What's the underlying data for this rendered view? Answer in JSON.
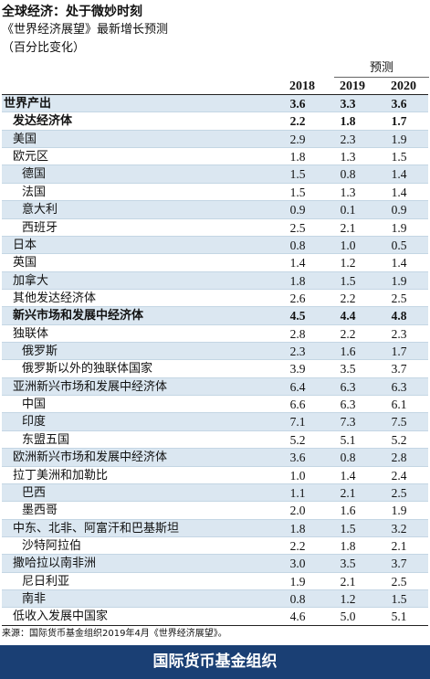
{
  "header": {
    "title": "全球经济：处于微妙时刻",
    "subtitle": "《世界经济展望》最新增长预测",
    "unit": "（百分比变化）"
  },
  "columns": {
    "forecast_label": "预测",
    "years": [
      "2018",
      "2019",
      "2020"
    ]
  },
  "rows": [
    {
      "name": "世界产出",
      "values": [
        "3.6",
        "3.3",
        "3.6"
      ],
      "level": 0,
      "bold": true,
      "shaded": true
    },
    {
      "name": "发达经济体",
      "values": [
        "2.2",
        "1.8",
        "1.7"
      ],
      "level": 1,
      "bold": true,
      "shaded": false
    },
    {
      "name": "美国",
      "values": [
        "2.9",
        "2.3",
        "1.9"
      ],
      "level": 1,
      "bold": false,
      "shaded": true
    },
    {
      "name": "欧元区",
      "values": [
        "1.8",
        "1.3",
        "1.5"
      ],
      "level": 1,
      "bold": false,
      "shaded": false
    },
    {
      "name": "德国",
      "values": [
        "1.5",
        "0.8",
        "1.4"
      ],
      "level": 2,
      "bold": false,
      "shaded": true
    },
    {
      "name": "法国",
      "values": [
        "1.5",
        "1.3",
        "1.4"
      ],
      "level": 2,
      "bold": false,
      "shaded": false
    },
    {
      "name": "意大利",
      "values": [
        "0.9",
        "0.1",
        "0.9"
      ],
      "level": 2,
      "bold": false,
      "shaded": true
    },
    {
      "name": "西班牙",
      "values": [
        "2.5",
        "2.1",
        "1.9"
      ],
      "level": 2,
      "bold": false,
      "shaded": false
    },
    {
      "name": "日本",
      "values": [
        "0.8",
        "1.0",
        "0.5"
      ],
      "level": 1,
      "bold": false,
      "shaded": true
    },
    {
      "name": "英国",
      "values": [
        "1.4",
        "1.2",
        "1.4"
      ],
      "level": 1,
      "bold": false,
      "shaded": false
    },
    {
      "name": "加拿大",
      "values": [
        "1.8",
        "1.5",
        "1.9"
      ],
      "level": 1,
      "bold": false,
      "shaded": true
    },
    {
      "name": "其他发达经济体",
      "values": [
        "2.6",
        "2.2",
        "2.5"
      ],
      "level": 1,
      "bold": false,
      "shaded": false
    },
    {
      "name": "新兴市场和发展中经济体",
      "values": [
        "4.5",
        "4.4",
        "4.8"
      ],
      "level": 1,
      "bold": true,
      "shaded": true
    },
    {
      "name": "独联体",
      "values": [
        "2.8",
        "2.2",
        "2.3"
      ],
      "level": 1,
      "bold": false,
      "shaded": false
    },
    {
      "name": "俄罗斯",
      "values": [
        "2.3",
        "1.6",
        "1.7"
      ],
      "level": 2,
      "bold": false,
      "shaded": true
    },
    {
      "name": "俄罗斯以外的独联体国家",
      "values": [
        "3.9",
        "3.5",
        "3.7"
      ],
      "level": 2,
      "bold": false,
      "shaded": false
    },
    {
      "name": "亚洲新兴市场和发展中经济体",
      "values": [
        "6.4",
        "6.3",
        "6.3"
      ],
      "level": 1,
      "bold": false,
      "shaded": true
    },
    {
      "name": "中国",
      "values": [
        "6.6",
        "6.3",
        "6.1"
      ],
      "level": 2,
      "bold": false,
      "shaded": false
    },
    {
      "name": "印度",
      "values": [
        "7.1",
        "7.3",
        "7.5"
      ],
      "level": 2,
      "bold": false,
      "shaded": true
    },
    {
      "name": "东盟五国",
      "values": [
        "5.2",
        "5.1",
        "5.2"
      ],
      "level": 2,
      "bold": false,
      "shaded": false
    },
    {
      "name": "欧洲新兴市场和发展中经济体",
      "values": [
        "3.6",
        "0.8",
        "2.8"
      ],
      "level": 1,
      "bold": false,
      "shaded": true
    },
    {
      "name": "拉丁美洲和加勒比",
      "values": [
        "1.0",
        "1.4",
        "2.4"
      ],
      "level": 1,
      "bold": false,
      "shaded": false
    },
    {
      "name": "巴西",
      "values": [
        "1.1",
        "2.1",
        "2.5"
      ],
      "level": 2,
      "bold": false,
      "shaded": true
    },
    {
      "name": "墨西哥",
      "values": [
        "2.0",
        "1.6",
        "1.9"
      ],
      "level": 2,
      "bold": false,
      "shaded": false
    },
    {
      "name": "中东、北非、阿富汗和巴基斯坦",
      "values": [
        "1.8",
        "1.5",
        "3.2"
      ],
      "level": 1,
      "bold": false,
      "shaded": true
    },
    {
      "name": "沙特阿拉伯",
      "values": [
        "2.2",
        "1.8",
        "2.1"
      ],
      "level": 2,
      "bold": false,
      "shaded": false
    },
    {
      "name": "撒哈拉以南非洲",
      "values": [
        "3.0",
        "3.5",
        "3.7"
      ],
      "level": 1,
      "bold": false,
      "shaded": true
    },
    {
      "name": "尼日利亚",
      "values": [
        "1.9",
        "2.1",
        "2.5"
      ],
      "level": 2,
      "bold": false,
      "shaded": false
    },
    {
      "name": "南非",
      "values": [
        "0.8",
        "1.2",
        "1.5"
      ],
      "level": 2,
      "bold": false,
      "shaded": true
    },
    {
      "name": "低收入发展中国家",
      "values": [
        "4.6",
        "5.0",
        "5.1"
      ],
      "level": 1,
      "bold": false,
      "shaded": false
    }
  ],
  "source": "来源：国际货币基金组织2019年4月《世界经济展望》。",
  "footer": {
    "org_name": "国际货币基金组织"
  },
  "colors": {
    "row_shade": "#dbe7f1",
    "row_divider": "#c4d6e4",
    "footer_bg": "#1a3f74",
    "footer_text": "#ffffff"
  }
}
